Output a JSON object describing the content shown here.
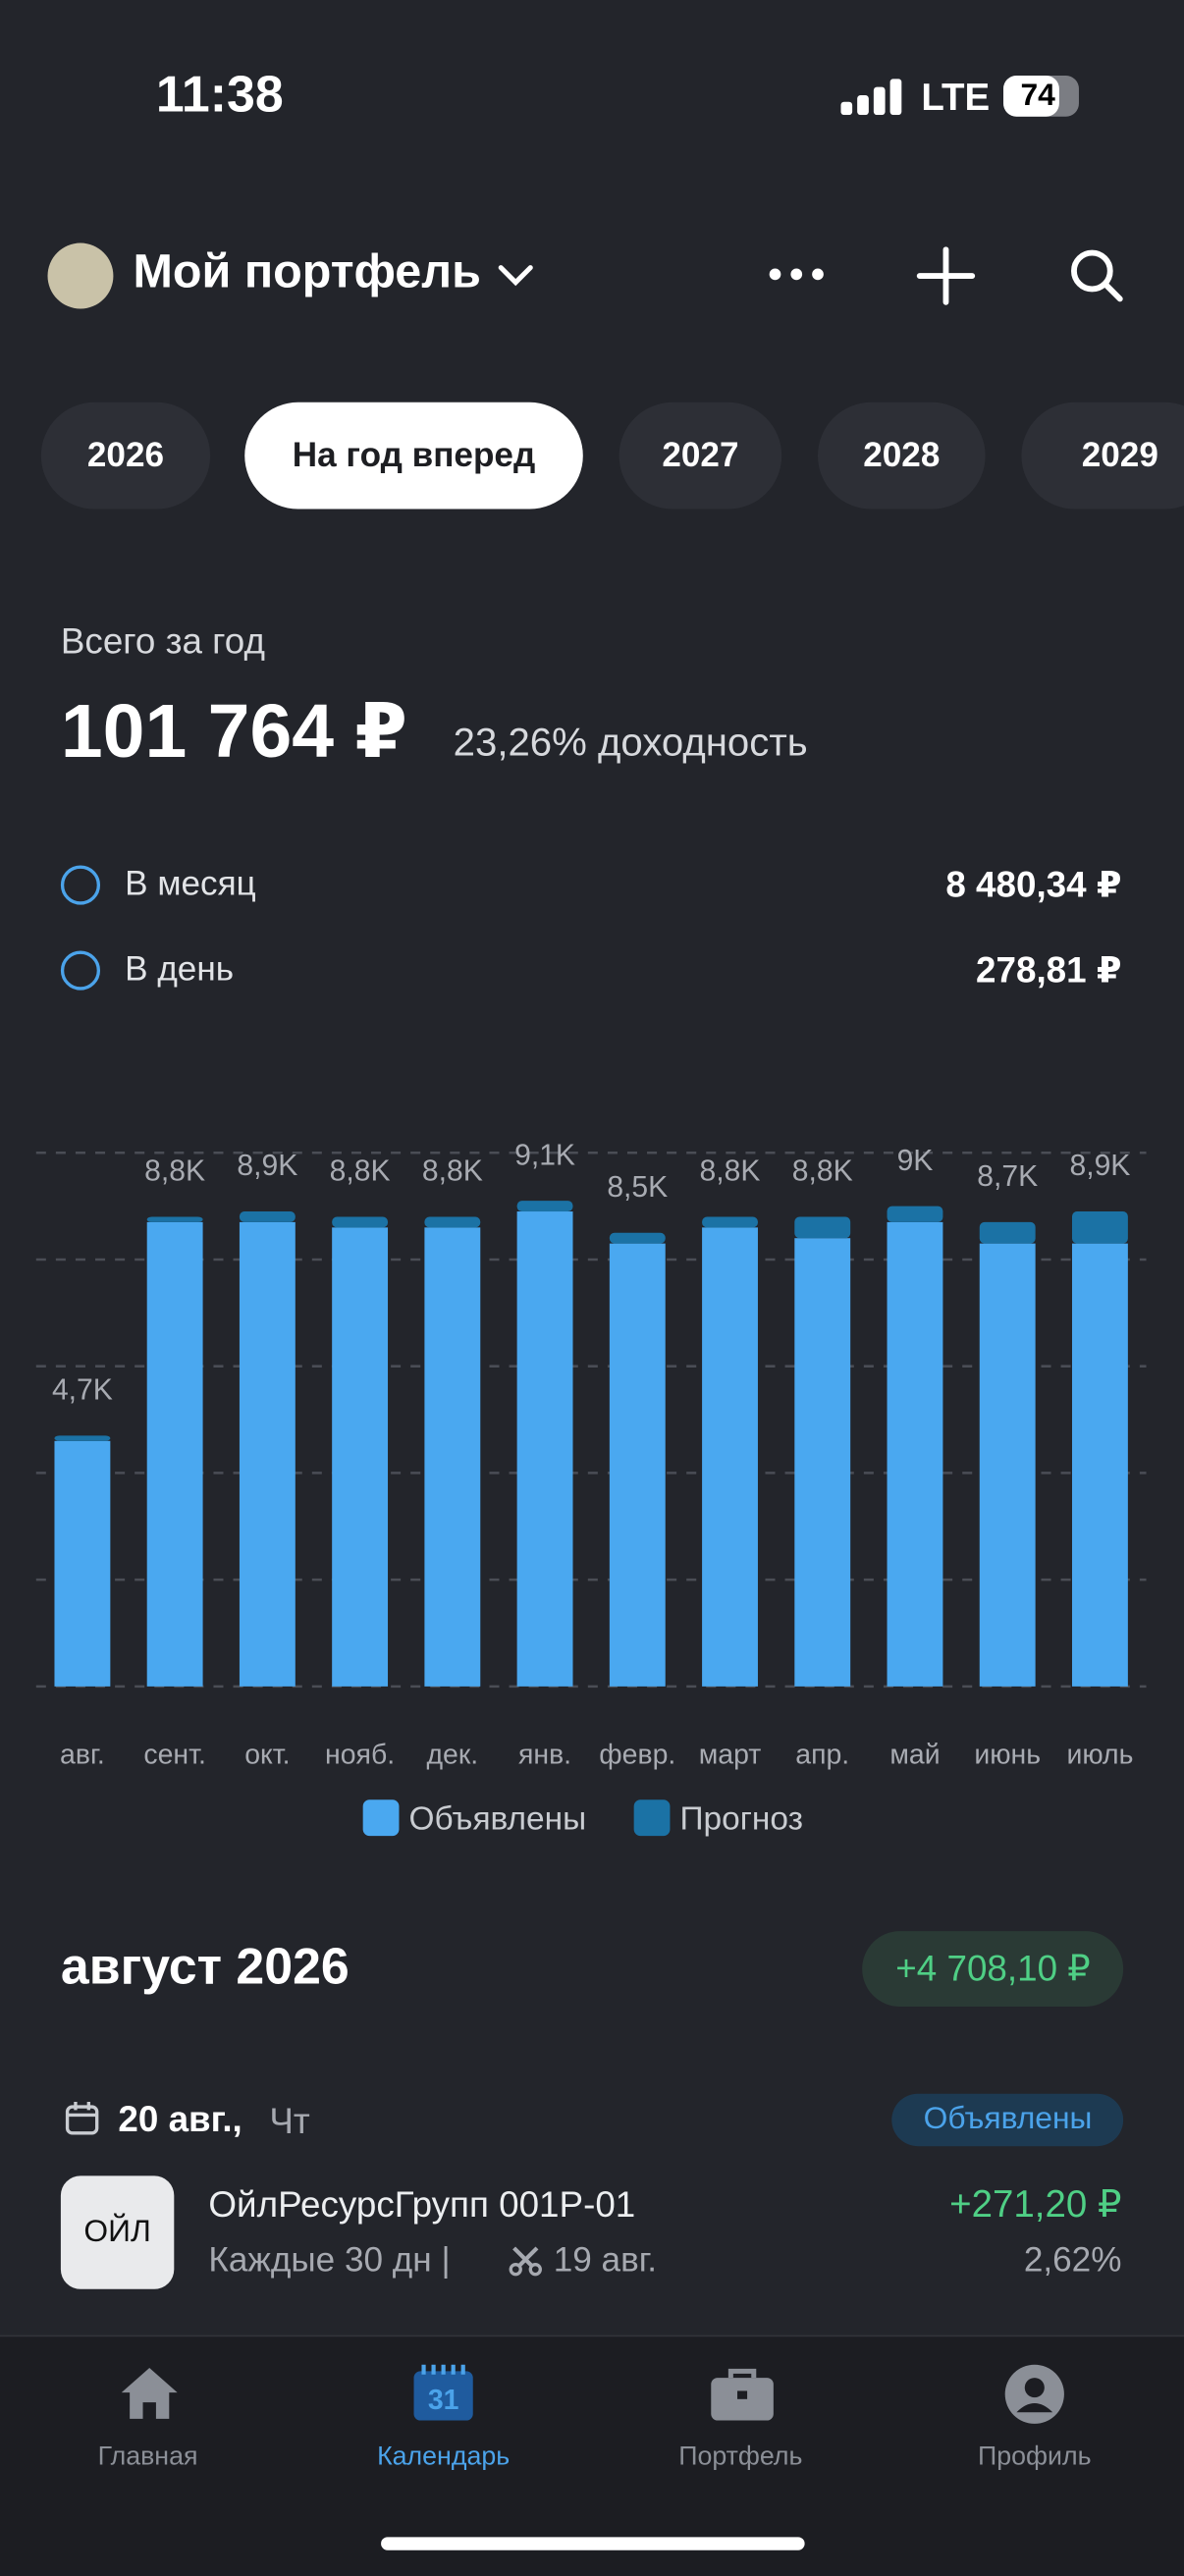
{
  "status": {
    "time": "11:38",
    "network": "LTE",
    "battery": "74"
  },
  "header": {
    "title": "Мой портфель"
  },
  "tabs": [
    "2026",
    "На год вперед",
    "2027",
    "2028",
    "2029"
  ],
  "summary": {
    "label": "Всего за год",
    "total": "101 764 ₽",
    "yield": "23,26% доходность",
    "rows": [
      {
        "label": "В месяц",
        "value": "8 480,34 ₽"
      },
      {
        "label": "В день",
        "value": "278,81 ₽"
      }
    ]
  },
  "chart_data": {
    "type": "stacked_bar",
    "categories": [
      "авг.",
      "сент.",
      "окт.",
      "нояб.",
      "дек.",
      "янв.",
      "февр.",
      "март",
      "апр.",
      "май",
      "июнь",
      "июль"
    ],
    "series": [
      {
        "name": "Объявлены",
        "color": "#4aa8f0",
        "values": [
          4600,
          8700,
          8700,
          8600,
          8600,
          8900,
          8300,
          8600,
          8400,
          8700,
          8300,
          8300
        ]
      },
      {
        "name": "Прогноз",
        "color": "#1b72a5",
        "values": [
          100,
          100,
          200,
          200,
          200,
          200,
          200,
          200,
          400,
          300,
          400,
          600
        ]
      }
    ],
    "value_labels": [
      "4,7K",
      "8,8K",
      "8,9K",
      "8,8K",
      "8,8K",
      "9,1K",
      "8,5K",
      "8,8K",
      "8,8K",
      "9K",
      "8,7K",
      "8,9K"
    ],
    "ylim": [
      0,
      10000
    ],
    "yticks": [
      0,
      2000,
      4000,
      6000,
      8000,
      10000
    ],
    "grid": true
  },
  "section": {
    "title": "август 2026",
    "badge": "+4 708,10 ₽"
  },
  "event": {
    "date": "20 авг.,",
    "weekday": "Чт",
    "status": "Объявлены",
    "ticker": "ОЙЛ",
    "name": "ОйлРесурсГрупп 001Р-01",
    "detail": "Каждые 30 дн |",
    "cut_date": "19 авг.",
    "amount": "+271,20 ₽",
    "yield": "2,62%"
  },
  "nav": [
    "Главная",
    "Календарь",
    "Портфель",
    "Профиль"
  ]
}
